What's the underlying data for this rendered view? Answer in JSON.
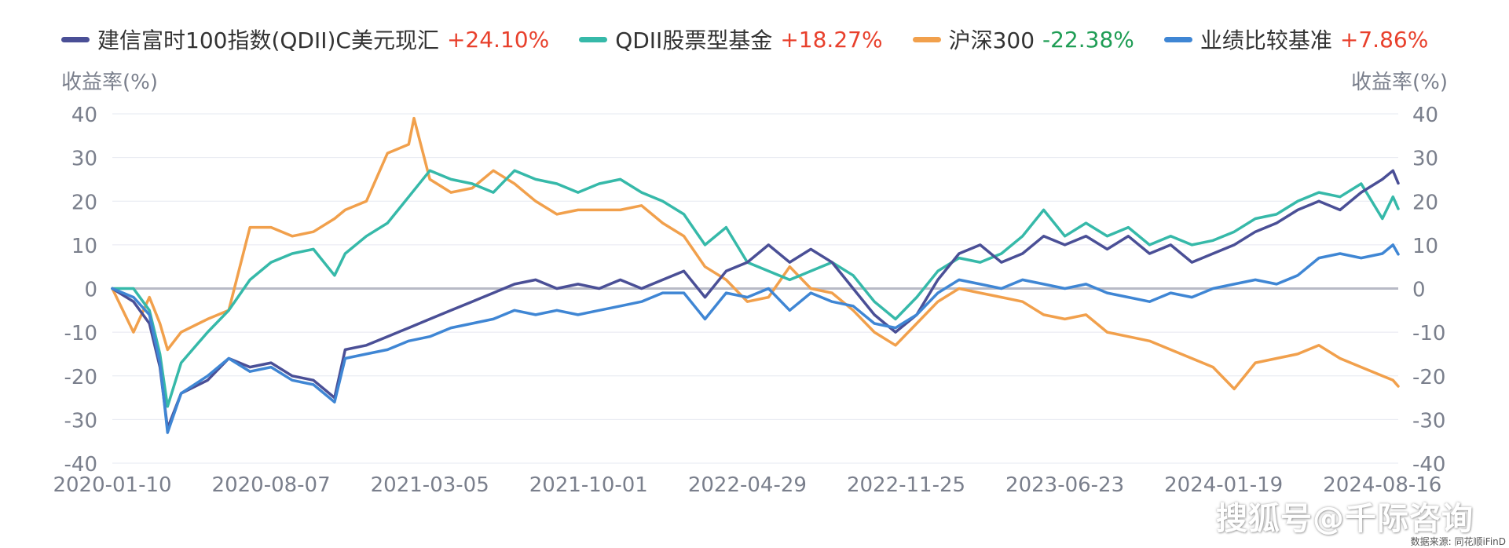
{
  "legend": [
    {
      "name": "建信富时100指数(QDII)C美元现汇",
      "value": "+24.10%",
      "color": "#4a4f96",
      "value_color": "#e8402c"
    },
    {
      "name": "QDII股票型基金",
      "value": "+18.27%",
      "color": "#36b9a9",
      "value_color": "#e8402c"
    },
    {
      "name": "沪深300",
      "value": "-22.38%",
      "color": "#f1a04c",
      "value_color": "#1f9d55"
    },
    {
      "name": "业绩比较基准",
      "value": "+7.86%",
      "color": "#3f86d4",
      "value_color": "#e8402c"
    }
  ],
  "axis_titles": {
    "left": "收益率(%)",
    "right": "收益率(%)"
  },
  "watermark": "搜狐号@千际咨询",
  "source": "数据来源: 同花顺iFinD",
  "chart_data": {
    "type": "line",
    "ylabel": "收益率(%)",
    "ylim": [
      -40,
      40
    ],
    "yticks": [
      40,
      30,
      20,
      10,
      0,
      -10,
      -20,
      -30,
      -40
    ],
    "x_ticks": [
      "2020-01-10",
      "2020-08-07",
      "2021-03-05",
      "2021-10-01",
      "2022-04-29",
      "2022-11-25",
      "2023-06-23",
      "2024-01-19",
      "2024-08-16"
    ],
    "x_end": "2024-09-06",
    "grid": true,
    "legend_position": "top",
    "series": [
      {
        "name": "建信富时100指数(QDII)C美元现汇",
        "color": "#4a4f96",
        "points": [
          [
            "2020-01-10",
            0
          ],
          [
            "2020-02-07",
            -3
          ],
          [
            "2020-02-28",
            -8
          ],
          [
            "2020-03-13",
            -18
          ],
          [
            "2020-03-23",
            -32
          ],
          [
            "2020-04-10",
            -24
          ],
          [
            "2020-05-15",
            -21
          ],
          [
            "2020-06-12",
            -16
          ],
          [
            "2020-07-10",
            -18
          ],
          [
            "2020-08-07",
            -17
          ],
          [
            "2020-09-04",
            -20
          ],
          [
            "2020-10-02",
            -21
          ],
          [
            "2020-10-30",
            -25
          ],
          [
            "2020-11-13",
            -14
          ],
          [
            "2020-12-11",
            -13
          ],
          [
            "2021-01-08",
            -11
          ],
          [
            "2021-02-05",
            -9
          ],
          [
            "2021-03-05",
            -7
          ],
          [
            "2021-04-02",
            -5
          ],
          [
            "2021-04-30",
            -3
          ],
          [
            "2021-05-28",
            -1
          ],
          [
            "2021-06-25",
            1
          ],
          [
            "2021-07-23",
            2
          ],
          [
            "2021-08-20",
            0
          ],
          [
            "2021-09-17",
            1
          ],
          [
            "2021-10-15",
            0
          ],
          [
            "2021-11-12",
            2
          ],
          [
            "2021-12-10",
            0
          ],
          [
            "2022-01-07",
            2
          ],
          [
            "2022-02-04",
            4
          ],
          [
            "2022-03-04",
            -2
          ],
          [
            "2022-04-01",
            4
          ],
          [
            "2022-04-29",
            6
          ],
          [
            "2022-05-27",
            10
          ],
          [
            "2022-06-24",
            6
          ],
          [
            "2022-07-22",
            9
          ],
          [
            "2022-08-19",
            6
          ],
          [
            "2022-09-16",
            0
          ],
          [
            "2022-10-14",
            -6
          ],
          [
            "2022-11-11",
            -10
          ],
          [
            "2022-12-09",
            -6
          ],
          [
            "2023-01-06",
            2
          ],
          [
            "2023-02-03",
            8
          ],
          [
            "2023-03-03",
            10
          ],
          [
            "2023-03-31",
            6
          ],
          [
            "2023-04-28",
            8
          ],
          [
            "2023-05-26",
            12
          ],
          [
            "2023-06-23",
            10
          ],
          [
            "2023-07-21",
            12
          ],
          [
            "2023-08-18",
            9
          ],
          [
            "2023-09-15",
            12
          ],
          [
            "2023-10-13",
            8
          ],
          [
            "2023-11-10",
            10
          ],
          [
            "2023-12-08",
            6
          ],
          [
            "2024-01-05",
            8
          ],
          [
            "2024-02-02",
            10
          ],
          [
            "2024-03-01",
            13
          ],
          [
            "2024-03-29",
            15
          ],
          [
            "2024-04-26",
            18
          ],
          [
            "2024-05-24",
            20
          ],
          [
            "2024-06-21",
            18
          ],
          [
            "2024-07-19",
            22
          ],
          [
            "2024-08-16",
            25
          ],
          [
            "2024-08-30",
            27
          ],
          [
            "2024-09-06",
            24.1
          ]
        ]
      },
      {
        "name": "QDII股票型基金",
        "color": "#36b9a9",
        "points": [
          [
            "2020-01-10",
            0
          ],
          [
            "2020-02-07",
            0
          ],
          [
            "2020-02-28",
            -5
          ],
          [
            "2020-03-13",
            -15
          ],
          [
            "2020-03-23",
            -27
          ],
          [
            "2020-04-10",
            -17
          ],
          [
            "2020-05-15",
            -10
          ],
          [
            "2020-06-12",
            -5
          ],
          [
            "2020-07-10",
            2
          ],
          [
            "2020-08-07",
            6
          ],
          [
            "2020-09-04",
            8
          ],
          [
            "2020-10-02",
            9
          ],
          [
            "2020-10-30",
            3
          ],
          [
            "2020-11-13",
            8
          ],
          [
            "2020-12-11",
            12
          ],
          [
            "2021-01-08",
            15
          ],
          [
            "2021-02-05",
            21
          ],
          [
            "2021-03-05",
            27
          ],
          [
            "2021-04-02",
            25
          ],
          [
            "2021-04-30",
            24
          ],
          [
            "2021-05-28",
            22
          ],
          [
            "2021-06-25",
            27
          ],
          [
            "2021-07-23",
            25
          ],
          [
            "2021-08-20",
            24
          ],
          [
            "2021-09-17",
            22
          ],
          [
            "2021-10-15",
            24
          ],
          [
            "2021-11-12",
            25
          ],
          [
            "2021-12-10",
            22
          ],
          [
            "2022-01-07",
            20
          ],
          [
            "2022-02-04",
            17
          ],
          [
            "2022-03-04",
            10
          ],
          [
            "2022-04-01",
            14
          ],
          [
            "2022-04-29",
            6
          ],
          [
            "2022-05-27",
            4
          ],
          [
            "2022-06-24",
            2
          ],
          [
            "2022-07-22",
            4
          ],
          [
            "2022-08-19",
            6
          ],
          [
            "2022-09-16",
            3
          ],
          [
            "2022-10-14",
            -3
          ],
          [
            "2022-11-11",
            -7
          ],
          [
            "2022-12-09",
            -2
          ],
          [
            "2023-01-06",
            4
          ],
          [
            "2023-02-03",
            7
          ],
          [
            "2023-03-03",
            6
          ],
          [
            "2023-03-31",
            8
          ],
          [
            "2023-04-28",
            12
          ],
          [
            "2023-05-26",
            18
          ],
          [
            "2023-06-23",
            12
          ],
          [
            "2023-07-21",
            15
          ],
          [
            "2023-08-18",
            12
          ],
          [
            "2023-09-15",
            14
          ],
          [
            "2023-10-13",
            10
          ],
          [
            "2023-11-10",
            12
          ],
          [
            "2023-12-08",
            10
          ],
          [
            "2024-01-05",
            11
          ],
          [
            "2024-02-02",
            13
          ],
          [
            "2024-03-01",
            16
          ],
          [
            "2024-03-29",
            17
          ],
          [
            "2024-04-26",
            20
          ],
          [
            "2024-05-24",
            22
          ],
          [
            "2024-06-21",
            21
          ],
          [
            "2024-07-19",
            24
          ],
          [
            "2024-08-16",
            16
          ],
          [
            "2024-08-30",
            21
          ],
          [
            "2024-09-06",
            18.27
          ]
        ]
      },
      {
        "name": "沪深300",
        "color": "#f1a04c",
        "points": [
          [
            "2020-01-10",
            0
          ],
          [
            "2020-02-07",
            -10
          ],
          [
            "2020-02-28",
            -2
          ],
          [
            "2020-03-13",
            -8
          ],
          [
            "2020-03-23",
            -14
          ],
          [
            "2020-04-10",
            -10
          ],
          [
            "2020-05-15",
            -7
          ],
          [
            "2020-06-12",
            -5
          ],
          [
            "2020-07-10",
            14
          ],
          [
            "2020-08-07",
            14
          ],
          [
            "2020-09-04",
            12
          ],
          [
            "2020-10-02",
            13
          ],
          [
            "2020-10-30",
            16
          ],
          [
            "2020-11-13",
            18
          ],
          [
            "2020-12-11",
            20
          ],
          [
            "2021-01-08",
            31
          ],
          [
            "2021-02-05",
            33
          ],
          [
            "2021-02-12",
            39
          ],
          [
            "2021-03-05",
            25
          ],
          [
            "2021-04-02",
            22
          ],
          [
            "2021-04-30",
            23
          ],
          [
            "2021-05-28",
            27
          ],
          [
            "2021-06-25",
            24
          ],
          [
            "2021-07-23",
            20
          ],
          [
            "2021-08-20",
            17
          ],
          [
            "2021-09-17",
            18
          ],
          [
            "2021-10-15",
            18
          ],
          [
            "2021-11-12",
            18
          ],
          [
            "2021-12-10",
            19
          ],
          [
            "2022-01-07",
            15
          ],
          [
            "2022-02-04",
            12
          ],
          [
            "2022-03-04",
            5
          ],
          [
            "2022-04-01",
            2
          ],
          [
            "2022-04-29",
            -3
          ],
          [
            "2022-05-27",
            -2
          ],
          [
            "2022-06-24",
            5
          ],
          [
            "2022-07-22",
            0
          ],
          [
            "2022-08-19",
            -1
          ],
          [
            "2022-09-16",
            -5
          ],
          [
            "2022-10-14",
            -10
          ],
          [
            "2022-11-11",
            -13
          ],
          [
            "2022-12-09",
            -8
          ],
          [
            "2023-01-06",
            -3
          ],
          [
            "2023-02-03",
            0
          ],
          [
            "2023-03-03",
            -1
          ],
          [
            "2023-03-31",
            -2
          ],
          [
            "2023-04-28",
            -3
          ],
          [
            "2023-05-26",
            -6
          ],
          [
            "2023-06-23",
            -7
          ],
          [
            "2023-07-21",
            -6
          ],
          [
            "2023-08-18",
            -10
          ],
          [
            "2023-09-15",
            -11
          ],
          [
            "2023-10-13",
            -12
          ],
          [
            "2023-11-10",
            -14
          ],
          [
            "2023-12-08",
            -16
          ],
          [
            "2024-01-05",
            -18
          ],
          [
            "2024-02-02",
            -23
          ],
          [
            "2024-03-01",
            -17
          ],
          [
            "2024-03-29",
            -16
          ],
          [
            "2024-04-26",
            -15
          ],
          [
            "2024-05-24",
            -13
          ],
          [
            "2024-06-21",
            -16
          ],
          [
            "2024-07-19",
            -18
          ],
          [
            "2024-08-16",
            -20
          ],
          [
            "2024-08-30",
            -21
          ],
          [
            "2024-09-06",
            -22.38
          ]
        ]
      },
      {
        "name": "业绩比较基准",
        "color": "#3f86d4",
        "points": [
          [
            "2020-01-10",
            0
          ],
          [
            "2020-02-07",
            -2
          ],
          [
            "2020-02-28",
            -6
          ],
          [
            "2020-03-13",
            -17
          ],
          [
            "2020-03-23",
            -33
          ],
          [
            "2020-04-10",
            -24
          ],
          [
            "2020-05-15",
            -20
          ],
          [
            "2020-06-12",
            -16
          ],
          [
            "2020-07-10",
            -19
          ],
          [
            "2020-08-07",
            -18
          ],
          [
            "2020-09-04",
            -21
          ],
          [
            "2020-10-02",
            -22
          ],
          [
            "2020-10-30",
            -26
          ],
          [
            "2020-11-13",
            -16
          ],
          [
            "2020-12-11",
            -15
          ],
          [
            "2021-01-08",
            -14
          ],
          [
            "2021-02-05",
            -12
          ],
          [
            "2021-03-05",
            -11
          ],
          [
            "2021-04-02",
            -9
          ],
          [
            "2021-04-30",
            -8
          ],
          [
            "2021-05-28",
            -7
          ],
          [
            "2021-06-25",
            -5
          ],
          [
            "2021-07-23",
            -6
          ],
          [
            "2021-08-20",
            -5
          ],
          [
            "2021-09-17",
            -6
          ],
          [
            "2021-10-15",
            -5
          ],
          [
            "2021-11-12",
            -4
          ],
          [
            "2021-12-10",
            -3
          ],
          [
            "2022-01-07",
            -1
          ],
          [
            "2022-02-04",
            -1
          ],
          [
            "2022-03-04",
            -7
          ],
          [
            "2022-04-01",
            -1
          ],
          [
            "2022-04-29",
            -2
          ],
          [
            "2022-05-27",
            0
          ],
          [
            "2022-06-24",
            -5
          ],
          [
            "2022-07-22",
            -1
          ],
          [
            "2022-08-19",
            -3
          ],
          [
            "2022-09-16",
            -4
          ],
          [
            "2022-10-14",
            -8
          ],
          [
            "2022-11-11",
            -9
          ],
          [
            "2022-12-09",
            -6
          ],
          [
            "2023-01-06",
            -1
          ],
          [
            "2023-02-03",
            2
          ],
          [
            "2023-03-03",
            1
          ],
          [
            "2023-03-31",
            0
          ],
          [
            "2023-04-28",
            2
          ],
          [
            "2023-05-26",
            1
          ],
          [
            "2023-06-23",
            0
          ],
          [
            "2023-07-21",
            1
          ],
          [
            "2023-08-18",
            -1
          ],
          [
            "2023-09-15",
            -2
          ],
          [
            "2023-10-13",
            -3
          ],
          [
            "2023-11-10",
            -1
          ],
          [
            "2023-12-08",
            -2
          ],
          [
            "2024-01-05",
            0
          ],
          [
            "2024-02-02",
            1
          ],
          [
            "2024-03-01",
            2
          ],
          [
            "2024-03-29",
            1
          ],
          [
            "2024-04-26",
            3
          ],
          [
            "2024-05-24",
            7
          ],
          [
            "2024-06-21",
            8
          ],
          [
            "2024-07-19",
            7
          ],
          [
            "2024-08-16",
            8
          ],
          [
            "2024-08-30",
            10
          ],
          [
            "2024-09-06",
            7.86
          ]
        ]
      }
    ]
  }
}
